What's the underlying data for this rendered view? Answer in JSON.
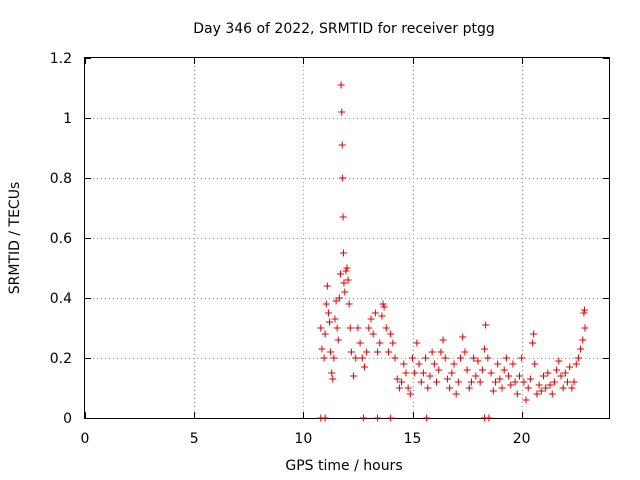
{
  "chart_data": {
    "type": "scatter",
    "title": "Day 346 of 2022, SRMTID for receiver ptgg",
    "xlabel": "GPS time / hours",
    "ylabel": "SRMTID / TECUs",
    "xlim": [
      0,
      24
    ],
    "ylim": [
      0,
      1.2
    ],
    "xticks": [
      0,
      5,
      10,
      15,
      20
    ],
    "xtick_labels": [
      "0",
      "5",
      "10",
      "15",
      "20"
    ],
    "yticks": [
      0,
      0.2,
      0.4,
      0.6,
      0.8,
      1.0,
      1.2
    ],
    "ytick_labels": [
      "0",
      "0.2",
      "0.4",
      "0.6",
      "0.8",
      "1",
      "1.2"
    ],
    "grid": true,
    "marker": "+",
    "color": "#e00000",
    "series": [
      {
        "name": "SRMTID",
        "points": [
          [
            10.8,
            0.3
          ],
          [
            10.85,
            0.23
          ],
          [
            10.95,
            0.2
          ],
          [
            11.0,
            0.28
          ],
          [
            11.05,
            0.38
          ],
          [
            11.1,
            0.44
          ],
          [
            11.15,
            0.35
          ],
          [
            11.2,
            0.32
          ],
          [
            11.25,
            0.22
          ],
          [
            11.3,
            0.15
          ],
          [
            11.35,
            0.13
          ],
          [
            11.4,
            0.2
          ],
          [
            11.45,
            0.33
          ],
          [
            11.5,
            0.39
          ],
          [
            11.55,
            0.3
          ],
          [
            11.6,
            0.26
          ],
          [
            11.65,
            0.4
          ],
          [
            11.7,
            0.48
          ],
          [
            11.73,
            1.11
          ],
          [
            11.76,
            1.02
          ],
          [
            11.78,
            0.91
          ],
          [
            11.8,
            0.8
          ],
          [
            11.82,
            0.67
          ],
          [
            11.84,
            0.55
          ],
          [
            11.86,
            0.45
          ],
          [
            11.9,
            0.42
          ],
          [
            11.95,
            0.49
          ],
          [
            12.0,
            0.5
          ],
          [
            12.05,
            0.46
          ],
          [
            12.1,
            0.38
          ],
          [
            12.15,
            0.3
          ],
          [
            12.2,
            0.22
          ],
          [
            12.3,
            0.14
          ],
          [
            12.4,
            0.2
          ],
          [
            12.5,
            0.3
          ],
          [
            12.6,
            0.25
          ],
          [
            12.7,
            0.2
          ],
          [
            12.8,
            0.17
          ],
          [
            12.9,
            0.22
          ],
          [
            13.0,
            0.3
          ],
          [
            13.1,
            0.33
          ],
          [
            13.2,
            0.28
          ],
          [
            13.3,
            0.35
          ],
          [
            13.4,
            0.22
          ],
          [
            13.5,
            0.25
          ],
          [
            13.6,
            0.34
          ],
          [
            13.65,
            0.38
          ],
          [
            13.7,
            0.37
          ],
          [
            13.8,
            0.3
          ],
          [
            13.9,
            0.22
          ],
          [
            14.0,
            0.28
          ],
          [
            14.1,
            0.25
          ],
          [
            14.2,
            0.2
          ],
          [
            14.3,
            0.13
          ],
          [
            14.4,
            0.1
          ],
          [
            14.5,
            0.12
          ],
          [
            14.6,
            0.18
          ],
          [
            14.7,
            0.15
          ],
          [
            14.8,
            0.1
          ],
          [
            14.9,
            0.08
          ],
          [
            15.0,
            0.2
          ],
          [
            15.1,
            0.15
          ],
          [
            15.2,
            0.25
          ],
          [
            15.3,
            0.18
          ],
          [
            15.4,
            0.12
          ],
          [
            15.5,
            0.15
          ],
          [
            15.6,
            0.2
          ],
          [
            15.7,
            0.1
          ],
          [
            15.8,
            0.14
          ],
          [
            15.9,
            0.22
          ],
          [
            16.0,
            0.18
          ],
          [
            16.1,
            0.12
          ],
          [
            16.2,
            0.16
          ],
          [
            16.3,
            0.22
          ],
          [
            16.4,
            0.26
          ],
          [
            16.5,
            0.2
          ],
          [
            16.6,
            0.13
          ],
          [
            16.7,
            0.1
          ],
          [
            16.8,
            0.15
          ],
          [
            16.9,
            0.18
          ],
          [
            17.0,
            0.08
          ],
          [
            17.1,
            0.12
          ],
          [
            17.2,
            0.2
          ],
          [
            17.3,
            0.27
          ],
          [
            17.4,
            0.22
          ],
          [
            17.5,
            0.16
          ],
          [
            17.6,
            0.1
          ],
          [
            17.7,
            0.12
          ],
          [
            17.8,
            0.2
          ],
          [
            17.9,
            0.14
          ],
          [
            18.0,
            0.19
          ],
          [
            18.1,
            0.12
          ],
          [
            18.2,
            0.16
          ],
          [
            18.3,
            0.23
          ],
          [
            18.35,
            0.31
          ],
          [
            18.45,
            0.2
          ],
          [
            18.6,
            0.15
          ],
          [
            18.7,
            0.09
          ],
          [
            18.8,
            0.12
          ],
          [
            18.9,
            0.18
          ],
          [
            19.0,
            0.13
          ],
          [
            19.1,
            0.1
          ],
          [
            19.2,
            0.16
          ],
          [
            19.3,
            0.2
          ],
          [
            19.4,
            0.14
          ],
          [
            19.5,
            0.11
          ],
          [
            19.6,
            0.18
          ],
          [
            19.7,
            0.12
          ],
          [
            19.8,
            0.08
          ],
          [
            19.9,
            0.14
          ],
          [
            20.0,
            0.2
          ],
          [
            20.1,
            0.12
          ],
          [
            20.2,
            0.06
          ],
          [
            20.3,
            0.1
          ],
          [
            20.4,
            0.13
          ],
          [
            20.5,
            0.25
          ],
          [
            20.55,
            0.28
          ],
          [
            20.6,
            0.18
          ],
          [
            20.7,
            0.08
          ],
          [
            20.8,
            0.11
          ],
          [
            20.9,
            0.09
          ],
          [
            21.0,
            0.14
          ],
          [
            21.1,
            0.1
          ],
          [
            21.2,
            0.15
          ],
          [
            21.3,
            0.11
          ],
          [
            21.4,
            0.08
          ],
          [
            21.5,
            0.12
          ],
          [
            21.6,
            0.16
          ],
          [
            21.7,
            0.19
          ],
          [
            21.8,
            0.14
          ],
          [
            21.9,
            0.1
          ],
          [
            22.0,
            0.15
          ],
          [
            22.1,
            0.12
          ],
          [
            22.2,
            0.17
          ],
          [
            22.3,
            0.1
          ],
          [
            22.4,
            0.12
          ],
          [
            22.5,
            0.18
          ],
          [
            22.6,
            0.2
          ],
          [
            22.7,
            0.23
          ],
          [
            22.8,
            0.26
          ],
          [
            22.85,
            0.35
          ],
          [
            22.88,
            0.36
          ],
          [
            22.9,
            0.3
          ],
          [
            10.8,
            0.0
          ],
          [
            11.0,
            0.0
          ],
          [
            12.75,
            0.0
          ],
          [
            13.4,
            0.0
          ],
          [
            14.0,
            0.0
          ],
          [
            15.65,
            0.0
          ],
          [
            18.3,
            0.0
          ],
          [
            18.5,
            0.0
          ]
        ]
      }
    ]
  }
}
